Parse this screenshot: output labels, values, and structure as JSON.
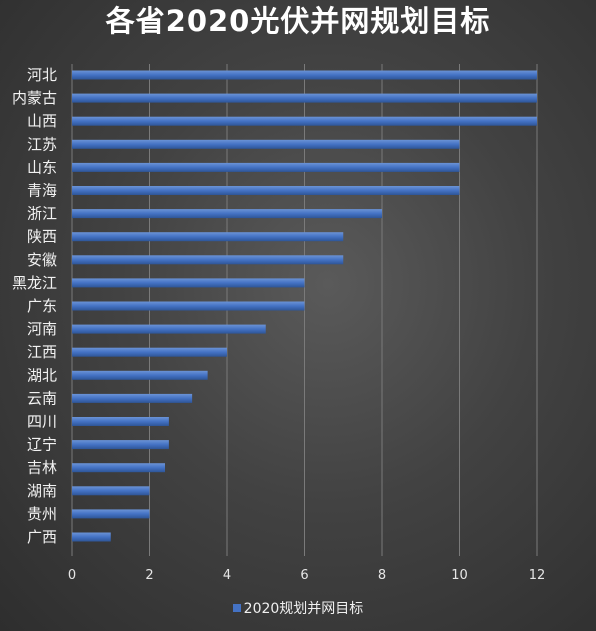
{
  "chart_data": {
    "type": "bar",
    "orientation": "horizontal",
    "title": "各省2020光伏并网规划目标",
    "categories": [
      "河北",
      "内蒙古",
      "山西",
      "江苏",
      "山东",
      "青海",
      "浙江",
      "陕西",
      "安徽",
      "黑龙江",
      "广东",
      "河南",
      "江西",
      "湖北",
      "云南",
      "四川",
      "辽宁",
      "吉林",
      "湖南",
      "贵州",
      "广西"
    ],
    "series": [
      {
        "name": "2020规划并网目标",
        "values": [
          12,
          12,
          12,
          10,
          10,
          10,
          8,
          7,
          7,
          6,
          6,
          5,
          4,
          3.5,
          3.1,
          2.5,
          2.5,
          2.4,
          2,
          2,
          1
        ],
        "color": "#4472c4"
      }
    ],
    "xlim": [
      0,
      12
    ],
    "xticks": [
      0,
      2,
      4,
      6,
      8,
      10,
      12
    ],
    "xlabel": "",
    "ylabel": "",
    "grid": "vertical",
    "legend": "bottom-center",
    "background": "#3c3c3c",
    "gridline_color": "#7a7a7a"
  }
}
